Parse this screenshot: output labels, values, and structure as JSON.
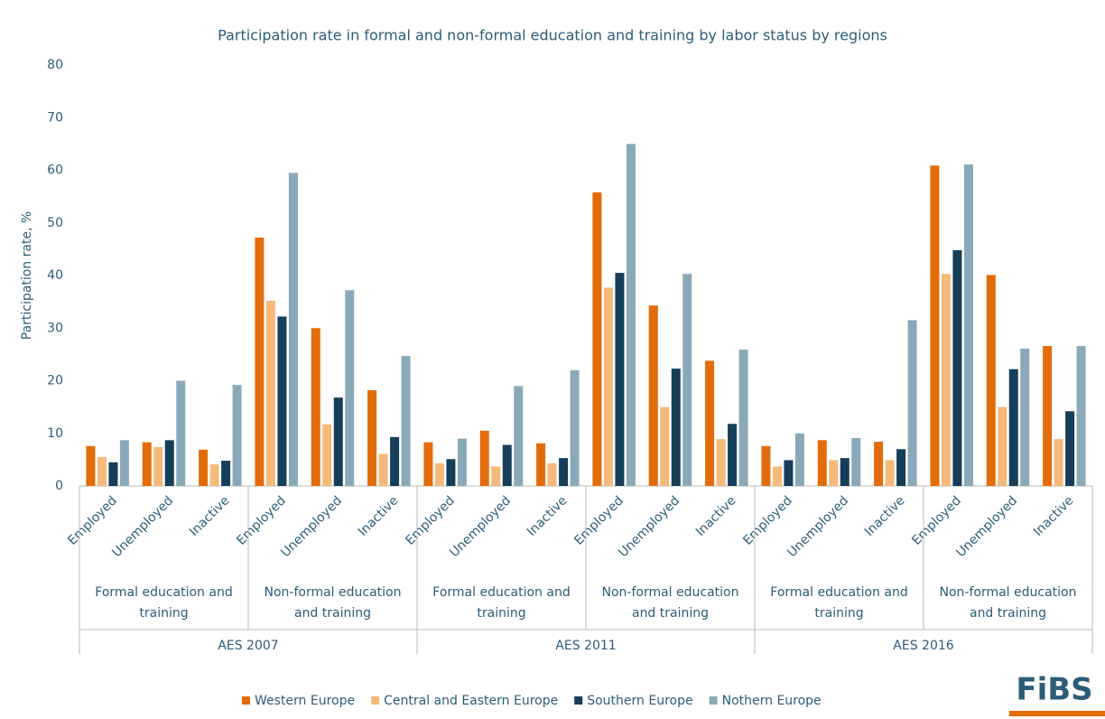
{
  "chart_data": {
    "type": "bar",
    "title": "Participation rate in formal and non-formal education and training by labor status by regions",
    "y_label": "Participation rate, %",
    "categories": [
      "Employed",
      "Unemployed",
      "Inactive",
      "Employed",
      "Unemployed",
      "Inactive",
      "Employed",
      "Unemployed",
      "Inactive",
      "Employed",
      "Unemployed",
      "Inactive",
      "Employed",
      "Unemployed",
      "Inactive",
      "Employed",
      "Unemployed",
      "Inactive"
    ],
    "groups": [
      "Formal education and training",
      "Non-formal education and training",
      "Formal education and training",
      "Non-formal education and training",
      "Formal education and training",
      "Non-formal education and training"
    ],
    "supergroups": [
      "AES 2007",
      "AES 2011",
      "AES 2016"
    ],
    "series": [
      {
        "name": "Western Europe",
        "color": "#e36c0a",
        "values": [
          7.6,
          8.3,
          6.9,
          47.2,
          30.0,
          18.2,
          8.3,
          10.5,
          8.1,
          55.8,
          34.3,
          23.8,
          7.6,
          8.7,
          8.4,
          60.9,
          40.1,
          26.6
        ]
      },
      {
        "name": "Central and Eastern Europe",
        "color": "#f5b97a",
        "values": [
          5.5,
          7.4,
          4.1,
          35.2,
          11.7,
          6.1,
          4.3,
          3.7,
          4.3,
          37.7,
          15.0,
          8.9,
          3.7,
          4.9,
          4.9,
          40.3,
          15.0,
          8.9
        ]
      },
      {
        "name": "Southern Europe",
        "color": "#163e59",
        "values": [
          4.5,
          8.7,
          4.8,
          32.2,
          16.8,
          9.3,
          5.1,
          7.8,
          5.3,
          40.5,
          22.3,
          11.8,
          4.9,
          5.3,
          7.0,
          44.8,
          22.2,
          14.2
        ]
      },
      {
        "name": "Nothern Europe",
        "color": "#8ba8b8",
        "values": [
          8.7,
          20.0,
          19.2,
          59.5,
          37.2,
          24.7,
          9.0,
          19.0,
          22.0,
          65.0,
          40.3,
          25.9,
          10.0,
          9.1,
          31.5,
          61.1,
          26.1,
          26.6
        ]
      }
    ],
    "ylim": [
      0,
      80
    ],
    "yticks": [
      0,
      10,
      20,
      30,
      40,
      50,
      60,
      70,
      80
    ],
    "grid": false,
    "logo": "FiBS"
  }
}
